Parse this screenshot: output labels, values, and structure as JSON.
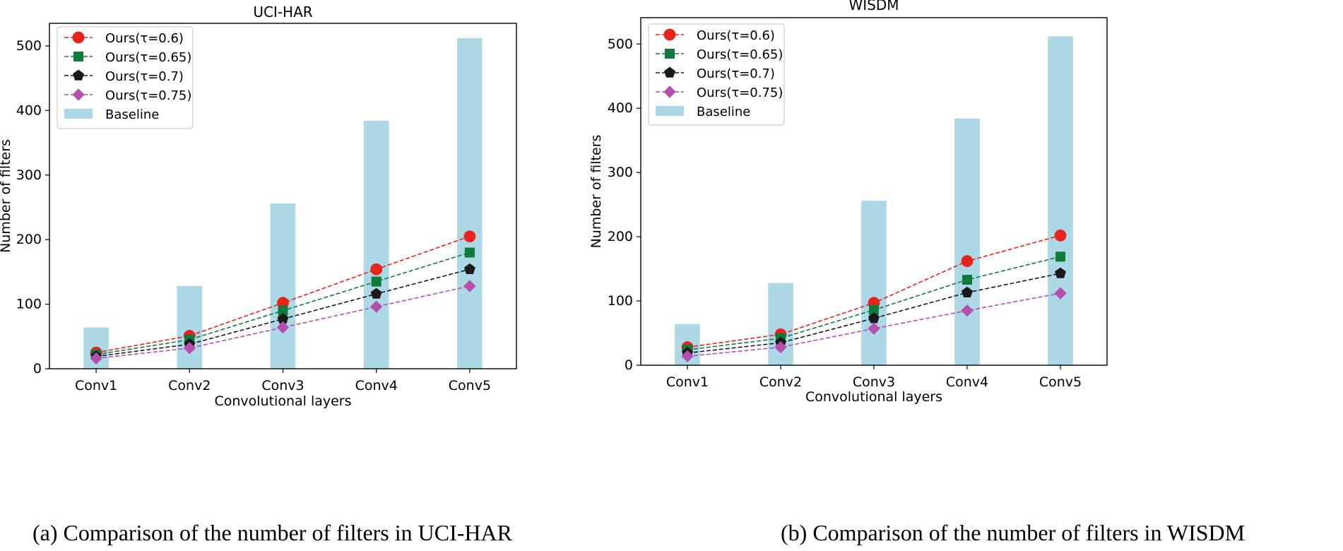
{
  "chart_data": [
    {
      "type": "bar",
      "title": "UCI-HAR",
      "xlabel": "Convolutional layers",
      "ylabel": "Number of filters",
      "categories": [
        "Conv1",
        "Conv2",
        "Conv3",
        "Conv4",
        "Conv5"
      ],
      "ylim": [
        0,
        535
      ],
      "yticks": [
        0,
        100,
        200,
        300,
        400,
        500
      ],
      "grid": false,
      "legend_position": "upper-left",
      "bar_series": {
        "name": "Baseline",
        "color": "#add8e6",
        "values": [
          64,
          128,
          256,
          384,
          512
        ]
      },
      "line_series": [
        {
          "name": "Ours(τ=0.6)",
          "color": "#e8221c",
          "marker": "circle",
          "values": [
            25,
            51,
            102,
            154,
            205
          ]
        },
        {
          "name": "Ours(τ=0.65)",
          "color": "#0f7a3c",
          "marker": "square",
          "values": [
            22,
            45,
            90,
            135,
            180
          ]
        },
        {
          "name": "Ours(τ=0.7)",
          "color": "#1a1a1a",
          "marker": "pentagon",
          "values": [
            19,
            38,
            77,
            116,
            154
          ]
        },
        {
          "name": "Ours(τ=0.75)",
          "color": "#b44fae",
          "marker": "diamond",
          "values": [
            16,
            32,
            64,
            96,
            128
          ]
        }
      ],
      "caption": "(a)  Comparison of the number of filters in UCI-HAR"
    },
    {
      "type": "bar",
      "title": "WISDM",
      "xlabel": "Convolutional layers",
      "ylabel": "Number of filters",
      "categories": [
        "Conv1",
        "Conv2",
        "Conv3",
        "Conv4",
        "Conv5"
      ],
      "ylim": [
        0,
        541
      ],
      "yticks": [
        0,
        100,
        200,
        300,
        400,
        500
      ],
      "grid": false,
      "legend_position": "upper-left",
      "bar_series": {
        "name": "Baseline",
        "color": "#add8e6",
        "values": [
          64,
          128,
          256,
          384,
          512
        ]
      },
      "line_series": [
        {
          "name": "Ours(τ=0.6)",
          "color": "#e8221c",
          "marker": "circle",
          "values": [
            28,
            48,
            97,
            162,
            202
          ]
        },
        {
          "name": "Ours(τ=0.65)",
          "color": "#0f7a3c",
          "marker": "square",
          "values": [
            24,
            42,
            86,
            133,
            169
          ]
        },
        {
          "name": "Ours(τ=0.7)",
          "color": "#1a1a1a",
          "marker": "pentagon",
          "values": [
            19,
            35,
            73,
            113,
            143
          ]
        },
        {
          "name": "Ours(τ=0.75)",
          "color": "#b44fae",
          "marker": "diamond",
          "values": [
            14,
            28,
            57,
            85,
            112
          ]
        }
      ],
      "caption": "(b)  Comparison of the number of filters in WISDM"
    }
  ]
}
